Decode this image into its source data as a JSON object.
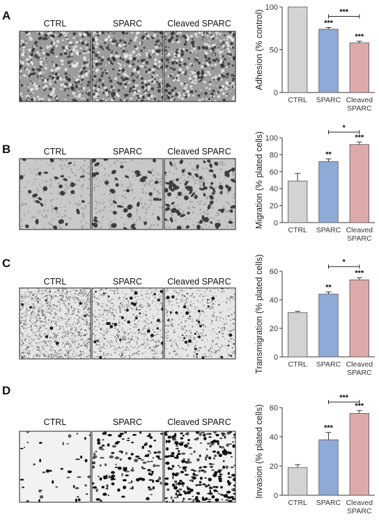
{
  "panels": [
    {
      "letter": "A",
      "image_labels": [
        "CTRL",
        "SPARC",
        "Cleaved SPARC"
      ],
      "image_styles": [
        "phase",
        "phase",
        "phase"
      ],
      "chart_data": {
        "type": "bar",
        "ylabel": "Adhesion (% control)",
        "ylim": [
          0,
          100
        ],
        "yticks": [
          0,
          50,
          100
        ],
        "categories": [
          "CTRL",
          "SPARC",
          "Cleaved SPARC"
        ],
        "category_lines": [
          [
            "CTRL"
          ],
          [
            "SPARC"
          ],
          [
            "Cleaved",
            "SPARC"
          ]
        ],
        "values": [
          100,
          74,
          58
        ],
        "errors": [
          0,
          2,
          2
        ],
        "stars": [
          "",
          "***",
          "***"
        ],
        "bracket": {
          "from": 1,
          "to": 2,
          "label": "***"
        },
        "colors": [
          "#d3d3d3",
          "#8faad6",
          "#ddaaaa"
        ]
      }
    },
    {
      "letter": "B",
      "image_labels": [
        "CTRL",
        "SPARC",
        "Cleaved SPARC"
      ],
      "image_styles": [
        "dots-sparse",
        "dots-mid",
        "dots-dense"
      ],
      "chart_data": {
        "type": "bar",
        "ylabel": "Migration (% plated cells)",
        "ylim": [
          0,
          100
        ],
        "yticks": [
          0,
          20,
          40,
          60,
          80,
          100
        ],
        "categories": [
          "CTRL",
          "SPARC",
          "Cleaved SPARC"
        ],
        "category_lines": [
          [
            "CTRL"
          ],
          [
            "SPARC"
          ],
          [
            "Cleaved",
            "SPARC"
          ]
        ],
        "values": [
          49,
          72,
          92
        ],
        "errors": [
          9,
          3,
          3
        ],
        "stars": [
          "",
          "**",
          "***"
        ],
        "bracket": {
          "from": 1,
          "to": 2,
          "label": "*"
        },
        "colors": [
          "#d3d3d3",
          "#8faad6",
          "#ddaaaa"
        ]
      }
    },
    {
      "letter": "C",
      "image_labels": [
        "CTRL",
        "SPARC",
        "Cleaved SPARC"
      ],
      "image_styles": [
        "speckle",
        "speckle-mid",
        "speckle-light"
      ],
      "chart_data": {
        "type": "bar",
        "ylabel": "Transmigration (% plated cells)",
        "ylim": [
          0,
          60
        ],
        "yticks": [
          0,
          20,
          40,
          60
        ],
        "categories": [
          "CTRL",
          "SPARC",
          "Cleaved SPARC"
        ],
        "category_lines": [
          [
            "CTRL"
          ],
          [
            "SPARC"
          ],
          [
            "Cleaved",
            "SPARC"
          ]
        ],
        "values": [
          31,
          44,
          54
        ],
        "errors": [
          1,
          1.5,
          1.5
        ],
        "stars": [
          "",
          "**",
          "***"
        ],
        "bracket": {
          "from": 1,
          "to": 2,
          "label": "*"
        },
        "colors": [
          "#d3d3d3",
          "#8faad6",
          "#ddaaaa"
        ]
      }
    },
    {
      "letter": "D",
      "image_labels": [
        "CTRL",
        "SPARC",
        "Cleaved SPARC"
      ],
      "image_styles": [
        "blots-sparse",
        "blots-mid",
        "blots-dense"
      ],
      "chart_data": {
        "type": "bar",
        "ylabel": "Invasion (% plated cells)",
        "ylim": [
          0,
          60
        ],
        "yticks": [
          0,
          20,
          40,
          60
        ],
        "categories": [
          "CTRL",
          "SPARC",
          "Cleaved SPARC"
        ],
        "category_lines": [
          [
            "CTRL"
          ],
          [
            "SPARC"
          ],
          [
            "Cleaved",
            "SPARC"
          ]
        ],
        "values": [
          19,
          38,
          56
        ],
        "errors": [
          2,
          5,
          2
        ],
        "stars": [
          "",
          "***",
          "***"
        ],
        "bracket": {
          "from": 1,
          "to": 2,
          "label": "***"
        },
        "colors": [
          "#d3d3d3",
          "#8faad6",
          "#ddaaaa"
        ]
      }
    }
  ]
}
